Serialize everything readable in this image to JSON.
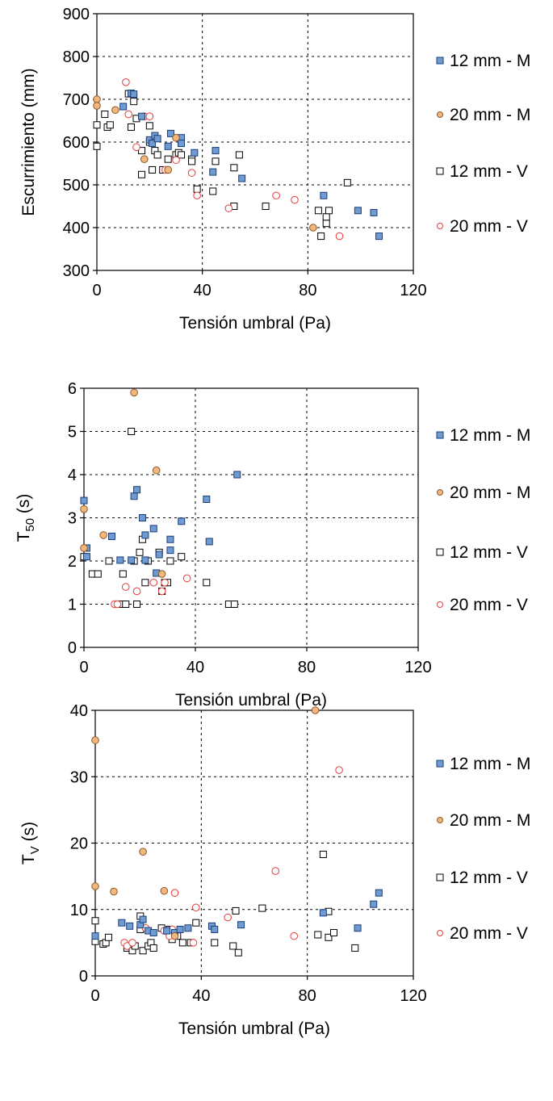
{
  "colors": {
    "mortar_12": "#6f9bd1",
    "mortar_20": "#f3b77d",
    "void_12": "#ffffff",
    "void_20": "#e83a3a",
    "grid": "#000000"
  },
  "chart_data": [
    {
      "type": "scatter",
      "title": "",
      "xlabel": "Tensión umbral (Pa)",
      "ylabel": "Escurrimiento (mm)",
      "xlim": [
        0,
        120
      ],
      "ylim": [
        300,
        900
      ],
      "xticks": [
        0,
        40,
        80,
        120
      ],
      "yticks": [
        300,
        400,
        500,
        600,
        700,
        800,
        900
      ],
      "grid": "dashed, x at 40 and 80, y every 100",
      "legend_position": "right",
      "series": [
        {
          "name": "12 mm - M",
          "marker": "square",
          "points": [
            [
              10,
              683
            ],
            [
              13,
              714
            ],
            [
              14,
              712
            ],
            [
              17,
              660
            ],
            [
              20,
              605
            ],
            [
              21,
              597
            ],
            [
              22,
              615
            ],
            [
              23,
              608
            ],
            [
              27,
              590
            ],
            [
              28,
              620
            ],
            [
              32,
              610
            ],
            [
              32,
              597
            ],
            [
              37,
              575
            ],
            [
              44,
              530
            ],
            [
              45,
              580
            ],
            [
              55,
              515
            ],
            [
              86,
              475
            ],
            [
              99,
              440
            ],
            [
              105,
              435
            ],
            [
              107,
              380
            ]
          ]
        },
        {
          "name": "20 mm - M",
          "marker": "circle",
          "points": [
            [
              0,
              700
            ],
            [
              0,
              685
            ],
            [
              7,
              675
            ],
            [
              18,
              560
            ],
            [
              27,
              535
            ],
            [
              30,
              610
            ],
            [
              82,
              400
            ]
          ]
        },
        {
          "name": "12 mm - V",
          "marker": "square",
          "points": [
            [
              0,
              640
            ],
            [
              0,
              590
            ],
            [
              3,
              665
            ],
            [
              4,
              635
            ],
            [
              5,
              640
            ],
            [
              12,
              713
            ],
            [
              13,
              635
            ],
            [
              14,
              695
            ],
            [
              15,
              655
            ],
            [
              17,
              524
            ],
            [
              17,
              580
            ],
            [
              20,
              638
            ],
            [
              20,
              600
            ],
            [
              21,
              535
            ],
            [
              22,
              580
            ],
            [
              23,
              570
            ],
            [
              25,
              535
            ],
            [
              27,
              560
            ],
            [
              30,
              570
            ],
            [
              31,
              575
            ],
            [
              32,
              570
            ],
            [
              36,
              560
            ],
            [
              36,
              555
            ],
            [
              38,
              490
            ],
            [
              44,
              485
            ],
            [
              45,
              555
            ],
            [
              52,
              540
            ],
            [
              52,
              450
            ],
            [
              54,
              570
            ],
            [
              64,
              450
            ],
            [
              84,
              440
            ],
            [
              85,
              380
            ],
            [
              87,
              410
            ],
            [
              87,
              425
            ],
            [
              88,
              440
            ],
            [
              95,
              505
            ]
          ]
        },
        {
          "name": "20 mm - V",
          "marker": "circle",
          "points": [
            [
              11,
              740
            ],
            [
              12,
              665
            ],
            [
              15,
              588
            ],
            [
              18,
              660
            ],
            [
              20,
              660
            ],
            [
              26,
              535
            ],
            [
              30,
              558
            ],
            [
              36,
              528
            ],
            [
              38,
              475
            ],
            [
              50,
              445
            ],
            [
              68,
              475
            ],
            [
              75,
              465
            ],
            [
              92,
              380
            ]
          ]
        }
      ]
    },
    {
      "type": "scatter",
      "title": "",
      "xlabel": "Tensión umbral (Pa)",
      "ylabel": "T50 (s)",
      "xlim": [
        0,
        120
      ],
      "ylim": [
        0,
        6
      ],
      "xticks": [
        0,
        40,
        80,
        120
      ],
      "yticks": [
        0,
        1,
        2,
        3,
        4,
        5,
        6
      ],
      "grid": "dashed, x at 40 and 80, y every 1",
      "legend_position": "right",
      "series": [
        {
          "name": "12 mm - M",
          "marker": "square",
          "points": [
            [
              0,
              3.4
            ],
            [
              1,
              2.3
            ],
            [
              1,
              2.1
            ],
            [
              10,
              2.57
            ],
            [
              13,
              2.02
            ],
            [
              17,
              2.02
            ],
            [
              18,
              3.5
            ],
            [
              19,
              3.65
            ],
            [
              21,
              3.0
            ],
            [
              22,
              2.02
            ],
            [
              22,
              2.6
            ],
            [
              25,
              2.75
            ],
            [
              26,
              1.72
            ],
            [
              27,
              2.15
            ],
            [
              31,
              2.5
            ],
            [
              31,
              2.25
            ],
            [
              35,
              2.92
            ],
            [
              44,
              3.43
            ],
            [
              45,
              2.45
            ],
            [
              55,
              4.0
            ]
          ]
        },
        {
          "name": "20 mm - M",
          "marker": "circle",
          "points": [
            [
              0,
              3.2
            ],
            [
              0,
              2.3
            ],
            [
              7,
              2.6
            ],
            [
              18,
              5.9
            ],
            [
              26,
              4.1
            ],
            [
              28,
              1.7
            ]
          ]
        },
        {
          "name": "12 mm - V",
          "marker": "square",
          "points": [
            [
              0,
              2.1
            ],
            [
              3,
              1.7
            ],
            [
              5,
              1.7
            ],
            [
              9,
              2.0
            ],
            [
              13,
              1.0
            ],
            [
              14,
              1.7
            ],
            [
              14,
              1.0
            ],
            [
              15,
              1.0
            ],
            [
              17,
              5.0
            ],
            [
              18,
              2.0
            ],
            [
              19,
              1.0
            ],
            [
              20,
              2.2
            ],
            [
              21,
              2.5
            ],
            [
              22,
              1.5
            ],
            [
              23,
              2.0
            ],
            [
              27,
              2.2
            ],
            [
              28,
              1.3
            ],
            [
              29,
              1.5
            ],
            [
              30,
              1.5
            ],
            [
              31,
              2.0
            ],
            [
              35,
              2.1
            ],
            [
              44,
              1.5
            ],
            [
              52,
              1.0
            ],
            [
              54,
              1.0
            ]
          ]
        },
        {
          "name": "20 mm - V",
          "marker": "circle",
          "points": [
            [
              11,
              1.0
            ],
            [
              12,
              1.0
            ],
            [
              15,
              1.4
            ],
            [
              19,
              1.3
            ],
            [
              25,
              1.5
            ],
            [
              28,
              1.3
            ],
            [
              29,
              1.5
            ],
            [
              37,
              1.6
            ]
          ]
        }
      ]
    },
    {
      "type": "scatter",
      "title": "",
      "xlabel": "Tensión umbral (Pa)",
      "ylabel": "TV (s)",
      "xlim": [
        0,
        120
      ],
      "ylim": [
        0,
        40
      ],
      "xticks": [
        0,
        40,
        80,
        120
      ],
      "yticks": [
        0,
        10,
        20,
        30,
        40
      ],
      "grid": "dashed, x at 40 and 80, y every 10",
      "legend_position": "right",
      "series": [
        {
          "name": "12 mm - M",
          "marker": "square",
          "points": [
            [
              0,
              6.0
            ],
            [
              10,
              8.0
            ],
            [
              13,
              7.5
            ],
            [
              17,
              7.7
            ],
            [
              18,
              8.5
            ],
            [
              20,
              6.8
            ],
            [
              22,
              6.5
            ],
            [
              27,
              6.8
            ],
            [
              30,
              6.5
            ],
            [
              32,
              7.0
            ],
            [
              35,
              7.2
            ],
            [
              44,
              7.5
            ],
            [
              45,
              7.0
            ],
            [
              55,
              7.7
            ],
            [
              86,
              9.5
            ],
            [
              99,
              7.2
            ],
            [
              105,
              10.8
            ],
            [
              107,
              12.5
            ]
          ]
        },
        {
          "name": "20 mm - M",
          "marker": "circle",
          "points": [
            [
              0,
              35.5
            ],
            [
              0,
              13.5
            ],
            [
              7,
              12.7
            ],
            [
              18,
              18.7
            ],
            [
              26,
              12.8
            ],
            [
              30,
              6.0
            ],
            [
              83,
              40.0
            ]
          ]
        },
        {
          "name": "12 mm - V",
          "marker": "square",
          "points": [
            [
              0,
              8.3
            ],
            [
              0,
              5.2
            ],
            [
              3,
              4.8
            ],
            [
              4,
              5.0
            ],
            [
              5,
              5.8
            ],
            [
              12,
              4.2
            ],
            [
              14,
              3.8
            ],
            [
              15,
              4.5
            ],
            [
              17,
              7.0
            ],
            [
              17,
              9.0
            ],
            [
              18,
              3.8
            ],
            [
              20,
              4.5
            ],
            [
              21,
              5.0
            ],
            [
              22,
              4.2
            ],
            [
              25,
              7.2
            ],
            [
              27,
              6.8
            ],
            [
              28,
              7.0
            ],
            [
              29,
              5.5
            ],
            [
              31,
              6.0
            ],
            [
              33,
              5.0
            ],
            [
              36,
              5.0
            ],
            [
              38,
              8.0
            ],
            [
              45,
              5.0
            ],
            [
              53,
              9.8
            ],
            [
              52,
              4.5
            ],
            [
              54,
              3.5
            ],
            [
              63,
              10.2
            ],
            [
              84,
              6.2
            ],
            [
              86,
              18.3
            ],
            [
              88,
              9.7
            ],
            [
              88,
              5.8
            ],
            [
              90,
              6.5
            ],
            [
              98,
              4.2
            ]
          ]
        },
        {
          "name": "20 mm - V",
          "marker": "circle",
          "points": [
            [
              11,
              5.0
            ],
            [
              12,
              4.5
            ],
            [
              14,
              5.0
            ],
            [
              19,
              7.2
            ],
            [
              26,
              6.8
            ],
            [
              28,
              6.0
            ],
            [
              29,
              7.0
            ],
            [
              30,
              12.5
            ],
            [
              37,
              5.0
            ],
            [
              38,
              10.3
            ],
            [
              50,
              8.8
            ],
            [
              68,
              15.8
            ],
            [
              75,
              6.0
            ],
            [
              92,
              31.0
            ]
          ]
        }
      ]
    }
  ]
}
